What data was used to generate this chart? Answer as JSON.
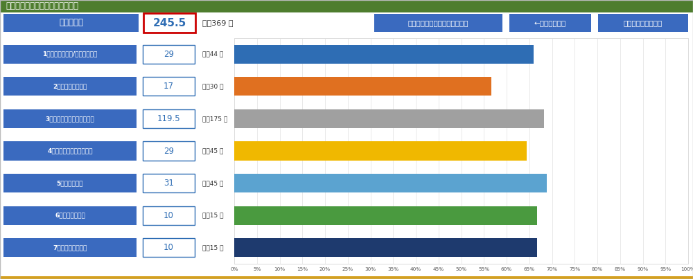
{
  "title": "維持管理の評価結果（総合評価）",
  "title_bg": "#4e7d2e",
  "title_color": "#ffffff",
  "header_bg": "#3a6abf",
  "total_label": "総合評価点",
  "total_score": "245.5",
  "total_max": "369 点",
  "btn_labels": [
    "レベルアップに向けた参考情報",
    "←　設問に戻る",
    "メニュー画面に戻る"
  ],
  "categories": [
    "1）　点検・診断/修繕・更新等",
    "2）　基準類の整備",
    "3）　情報基盤の整備と活用",
    "4）　新技術の開発・導入",
    "5）　予算管理",
    "6）　体制の構築",
    "7）　法令等の整備"
  ],
  "score_labels": [
    "29",
    "17",
    "119.5",
    "29",
    "31",
    "10",
    "10"
  ],
  "max_labels": [
    "44 点",
    "30 点",
    "175 点",
    "45 点",
    "45 点",
    "15 点",
    "15 点"
  ],
  "percentages": [
    65.9,
    56.7,
    68.3,
    64.4,
    68.9,
    66.7,
    66.7
  ],
  "bar_colors": [
    "#2e6db4",
    "#e07020",
    "#a0a0a0",
    "#f0b800",
    "#5ba3d0",
    "#4a9a3f",
    "#1e3a6e"
  ],
  "cat_bg": "#3a6abf",
  "score_box_border": "#2e6db4",
  "score_text": "#2e6db4",
  "figure_bg": "#ffffff",
  "grid_color": "#e0e0e0",
  "bottom_line_color": "#d4a020",
  "x_ticks": [
    0,
    5,
    10,
    15,
    20,
    25,
    30,
    35,
    40,
    45,
    50,
    55,
    60,
    65,
    70,
    75,
    80,
    85,
    90,
    95,
    100
  ],
  "x_tick_labels": [
    "0%",
    "5%",
    "10%",
    "15%",
    "20%",
    "25%",
    "30%",
    "35%",
    "40%",
    "45%",
    "50%",
    "55%",
    "60%",
    "65%",
    "70%",
    "75%",
    "80%",
    "85%",
    "90%",
    "95%",
    "100%"
  ]
}
